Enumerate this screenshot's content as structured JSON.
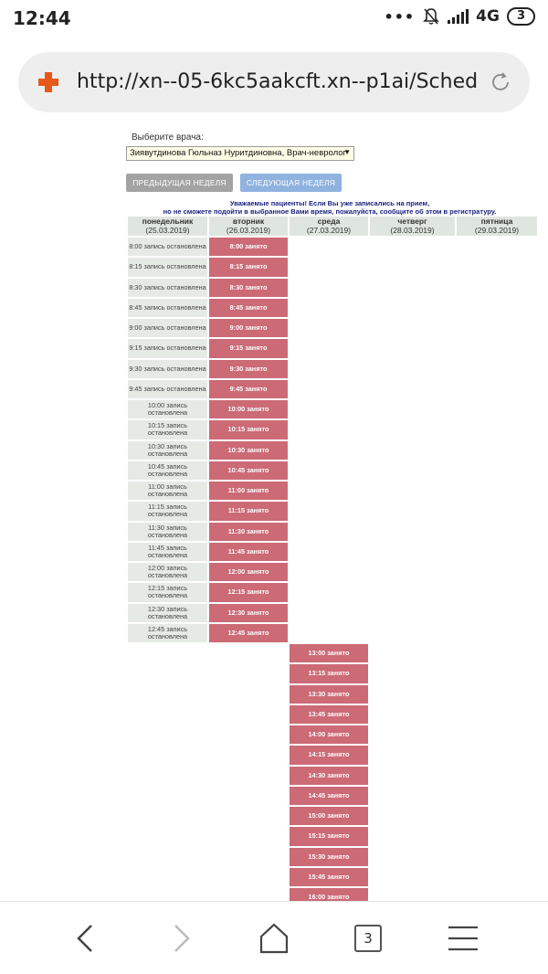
{
  "status_bar": {
    "time": "12:44",
    "dots": "•••",
    "network": "4G",
    "battery": "3",
    "icons": [
      "notifications-off-icon",
      "signal-icon"
    ]
  },
  "browser": {
    "url": "http://xn--05-6kc5aakcft.xn--p1ai/Sched",
    "site_icon": "red-cross-icon",
    "reload_icon": "reload-icon"
  },
  "page": {
    "doctor_label": "Выберите врача:",
    "doctor_selected": "Зиявутдинова Гюльназ Нуритдиновна, Врач-невролог",
    "prev_week": "ПРЕДЫДУЩАЯ НЕДЕЛЯ",
    "next_week": "СЛЕДУЮЩАЯ НЕДЕЛЯ",
    "notice_line1": "Уважаемые пациенты! Если Вы уже записались на прием,",
    "notice_line2": "но не сможете подойти в выбранное Вами время, пожалуйста, сообщите об этом в регистратуру.",
    "days": [
      {
        "name": "понедельник",
        "date": "(25.03.2019)"
      },
      {
        "name": "вторник",
        "date": "(26.03.2019)"
      },
      {
        "name": "среда",
        "date": "(27.03.2019)"
      },
      {
        "name": "четверг",
        "date": "(28.03.2019)"
      },
      {
        "name": "пятница",
        "date": "(29.03.2019)"
      }
    ],
    "monday_status": "запись остановлена",
    "busy_status": "занято",
    "morning_slots": [
      "8:00",
      "8:15",
      "8:30",
      "8:45",
      "9:00",
      "9:15",
      "9:30",
      "9:45",
      "10:00",
      "10:15",
      "10:30",
      "10:45",
      "11:00",
      "11:15",
      "11:30",
      "11:45",
      "12:00",
      "12:15",
      "12:30",
      "12:45"
    ],
    "afternoon_slots": [
      "13:00",
      "13:15",
      "13:30",
      "13:45",
      "14:00",
      "14:15",
      "14:30",
      "14:45",
      "15:00",
      "15:15",
      "15:30",
      "15:45",
      "16:00"
    ]
  },
  "bottom_nav": {
    "tab_count": "3",
    "icons": [
      "back-icon",
      "forward-icon",
      "home-icon",
      "tabs-icon",
      "menu-icon"
    ]
  }
}
